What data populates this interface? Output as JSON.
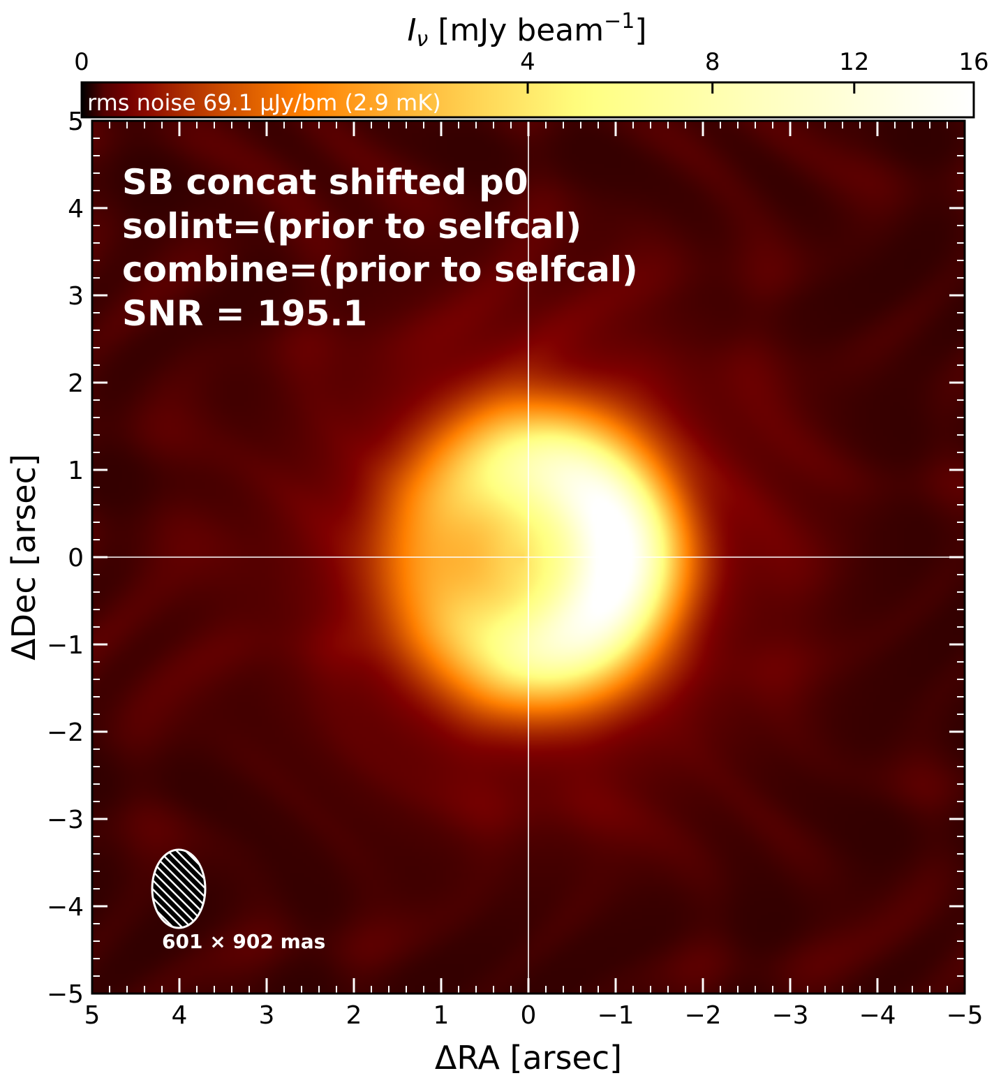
{
  "chart_data": {
    "type": "heatmap",
    "colorbar": {
      "label_main": "I",
      "label_sub": "ν",
      "label_rest": " [mJy beam",
      "label_sup": "−1",
      "label_end": "]",
      "ticks": [
        0,
        4,
        8,
        12,
        16
      ],
      "tick_labels": [
        "0",
        "4",
        "8",
        "12",
        "16"
      ],
      "range": [
        0,
        16
      ],
      "scale": "sqrt",
      "colormap": "afmhot",
      "noise_text": "rms noise 69.1 μJy/bm (2.9 mK)"
    },
    "xlabel": "ΔRA [arsec]",
    "ylabel": "ΔDec [arsec]",
    "xlim": [
      5,
      -5
    ],
    "ylim": [
      -5,
      5
    ],
    "xticks": [
      5,
      4,
      3,
      2,
      1,
      0,
      -1,
      -2,
      -3,
      -4,
      -5
    ],
    "xtick_labels": [
      "5",
      "4",
      "3",
      "2",
      "1",
      "0",
      "−1",
      "−2",
      "−3",
      "−4",
      "−5"
    ],
    "yticks": [
      5,
      4,
      3,
      2,
      1,
      0,
      -1,
      -2,
      -3,
      -4,
      -5
    ],
    "ytick_labels": [
      "5",
      "4",
      "3",
      "2",
      "1",
      "0",
      "−1",
      "−2",
      "−3",
      "−4",
      "−5"
    ],
    "annotation_lines": [
      "SB concat shifted p0",
      "solint=(prior to selfcal)",
      "combine=(prior to selfcal)",
      "SNR = 195.1"
    ],
    "beam": {
      "label": "601 × 902 mas",
      "major_mas": 902,
      "minor_mas": 601
    },
    "crosshair": {
      "x": 0,
      "y": 0
    },
    "ring": {
      "center": [
        0.03,
        0.0
      ],
      "radius_arcsec": 1.05,
      "width_arcsec": 0.55,
      "peak_mJy": 15.6,
      "peak_position": [
        -0.9,
        -0.2
      ],
      "center_mJy": 5.2
    },
    "background_mJy": 0.15,
    "colors": {
      "background": "#000000",
      "axes": "#000000",
      "overlay": "#ffffff"
    }
  }
}
